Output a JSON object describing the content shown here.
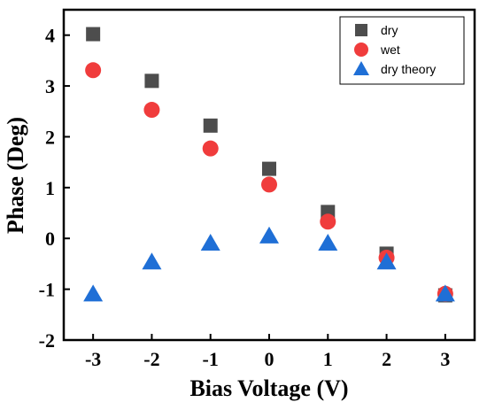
{
  "chart_data": {
    "type": "scatter",
    "xlabel": "Bias Voltage (V)",
    "ylabel": "Phase (Deg)",
    "xlim": [
      -3.5,
      3.5
    ],
    "ylim": [
      -2,
      4.5
    ],
    "x_ticks": [
      -3,
      -2,
      -1,
      0,
      1,
      2,
      3
    ],
    "y_ticks": [
      -2,
      -1,
      0,
      1,
      2,
      3,
      4
    ],
    "x_tick_labels": [
      "-3",
      "-2",
      "-1",
      "0",
      "1",
      "2",
      "3"
    ],
    "y_tick_labels": [
      "-2",
      "-1",
      "0",
      "1",
      "2",
      "3",
      "4"
    ],
    "grid": false,
    "legend_position": "top-right",
    "series": [
      {
        "name": "dry",
        "marker": "square",
        "color": "#4d4d4d",
        "x": [
          -3,
          -2,
          -1,
          0,
          1,
          2,
          3
        ],
        "y": [
          4.02,
          3.1,
          2.22,
          1.37,
          0.52,
          -0.3,
          -1.12
        ]
      },
      {
        "name": "wet",
        "marker": "circle",
        "color": "#f03c3c",
        "x": [
          -3,
          -2,
          -1,
          0,
          1,
          2,
          3
        ],
        "y": [
          3.31,
          2.53,
          1.77,
          1.06,
          0.33,
          -0.38,
          -1.09
        ]
      },
      {
        "name": "dry theory",
        "marker": "triangle",
        "color": "#1f6fd6",
        "x": [
          -3,
          -2,
          -1,
          0,
          1,
          2,
          3
        ],
        "y": [
          -1.1,
          -0.47,
          -0.1,
          0.04,
          -0.1,
          -0.47,
          -1.1
        ]
      }
    ]
  }
}
